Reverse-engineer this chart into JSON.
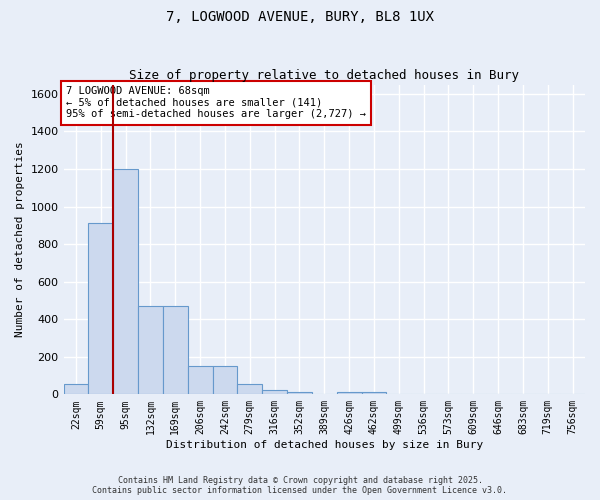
{
  "title_line1": "7, LOGWOOD AVENUE, BURY, BL8 1UX",
  "title_line2": "Size of property relative to detached houses in Bury",
  "xlabel": "Distribution of detached houses by size in Bury",
  "ylabel": "Number of detached properties",
  "bar_color": "#ccd9ee",
  "bar_edge_color": "#6699cc",
  "vline_color": "#aa0000",
  "background_color": "#e8eef8",
  "grid_color": "#ffffff",
  "categories": [
    "22sqm",
    "59sqm",
    "95sqm",
    "132sqm",
    "169sqm",
    "206sqm",
    "242sqm",
    "279sqm",
    "316sqm",
    "352sqm",
    "389sqm",
    "426sqm",
    "462sqm",
    "499sqm",
    "536sqm",
    "573sqm",
    "609sqm",
    "646sqm",
    "683sqm",
    "719sqm",
    "756sqm"
  ],
  "values": [
    55,
    910,
    1200,
    470,
    470,
    150,
    150,
    55,
    25,
    10,
    0,
    15,
    15,
    0,
    0,
    0,
    0,
    0,
    0,
    0,
    0
  ],
  "ylim": [
    0,
    1650
  ],
  "yticks": [
    0,
    200,
    400,
    600,
    800,
    1000,
    1200,
    1400,
    1600
  ],
  "annotation_text": "7 LOGWOOD AVENUE: 68sqm\n← 5% of detached houses are smaller (141)\n95% of semi-detached houses are larger (2,727) →",
  "vline_bin_index": 1,
  "footer_line1": "Contains HM Land Registry data © Crown copyright and database right 2025.",
  "footer_line2": "Contains public sector information licensed under the Open Government Licence v3.0."
}
